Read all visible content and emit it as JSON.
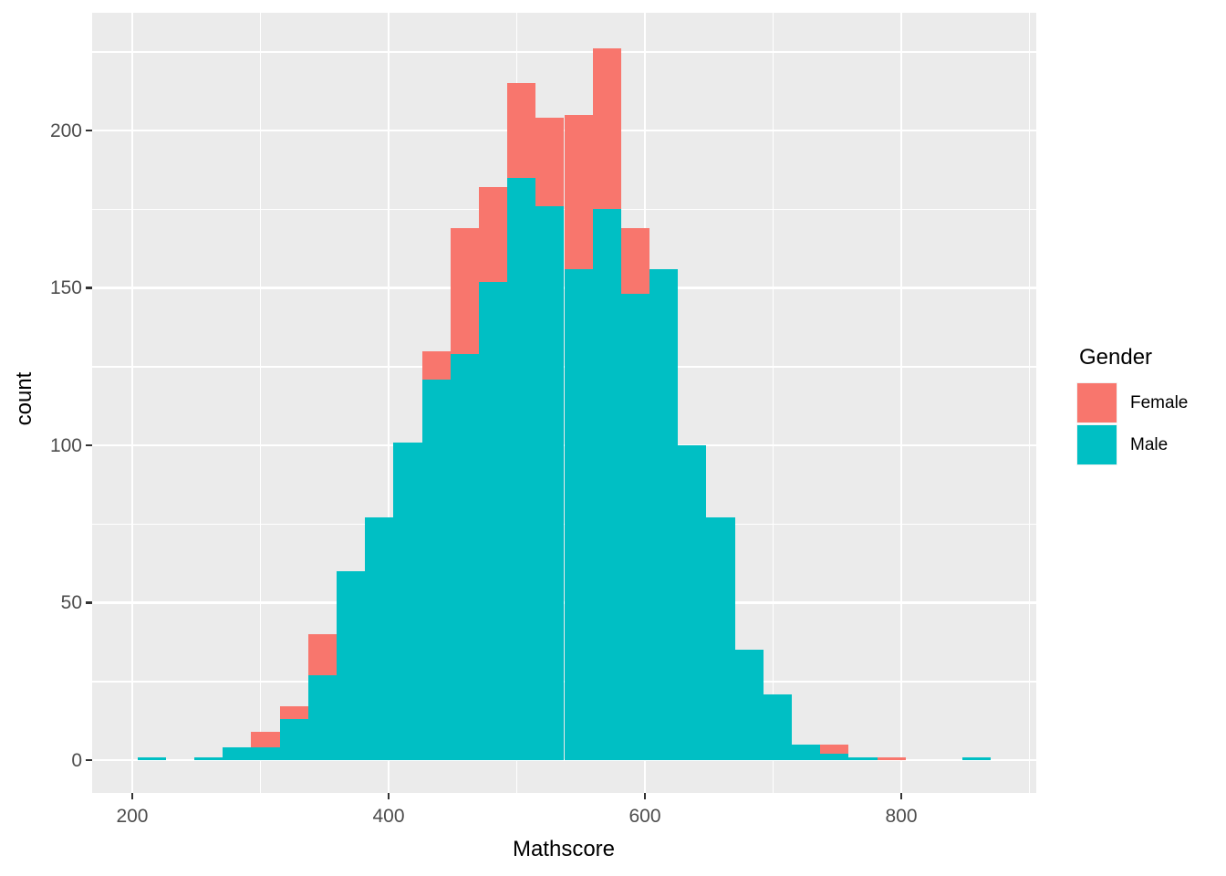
{
  "figure": {
    "kind": "ggplot-histogram",
    "background_color": "#FFFFFF"
  },
  "panel": {
    "background_color": "#EBEBEB",
    "grid_color": "#FFFFFF",
    "tick_mark_color": "#333333",
    "tick_label_color": "#4D4D4D",
    "title_color": "#000000"
  },
  "chart_data": {
    "type": "bar",
    "subtype": "stacked-histogram",
    "title": "",
    "xlabel": "Mathscore",
    "ylabel": "count",
    "x_ticks": [
      200,
      400,
      600,
      800
    ],
    "x_minor_gridlines": [
      300,
      500,
      700,
      900
    ],
    "y_ticks": [
      0,
      50,
      100,
      150,
      200
    ],
    "y_minor_gridlines": [
      25,
      75,
      125,
      175,
      225
    ],
    "xlim": [
      168.7,
      905.3
    ],
    "ylim": [
      -10.4,
      237.4
    ],
    "bin_width": 22.2,
    "bin_edges": [
      204.0,
      226.2,
      248.4,
      270.6,
      292.8,
      315.0,
      337.2,
      359.4,
      381.6,
      403.8,
      426.0,
      448.2,
      470.4,
      492.6,
      514.8,
      537.0,
      559.2,
      581.4,
      603.6,
      625.8,
      648.0,
      670.2,
      692.4,
      714.6,
      736.8,
      759.0,
      781.2,
      803.4,
      825.6,
      847.8,
      870.0
    ],
    "series": [
      {
        "name": "Male",
        "color": "#00BFC4",
        "stack_position": "bottom",
        "values": [
          1,
          0,
          1,
          4,
          4,
          13,
          27,
          60,
          77,
          101,
          121,
          129,
          152,
          185,
          176,
          156,
          175,
          148,
          156,
          100,
          77,
          35,
          21,
          5,
          2,
          1,
          0,
          0,
          0,
          1
        ]
      },
      {
        "name": "Female",
        "color": "#F8766D",
        "stack_position": "top",
        "values": [
          0,
          0,
          0,
          0,
          5,
          4,
          13,
          0,
          0,
          0,
          9,
          40,
          30,
          30,
          28,
          49,
          51,
          21,
          0,
          0,
          0,
          0,
          0,
          0,
          3,
          0,
          1,
          0,
          0,
          0
        ]
      }
    ],
    "legend": {
      "title": "Gender",
      "position": "right",
      "entries": [
        {
          "label": "Female",
          "color": "#F8766D"
        },
        {
          "label": "Male",
          "color": "#00BFC4"
        }
      ]
    },
    "grid": "on",
    "legend_key_background": "#F2F2F2"
  }
}
